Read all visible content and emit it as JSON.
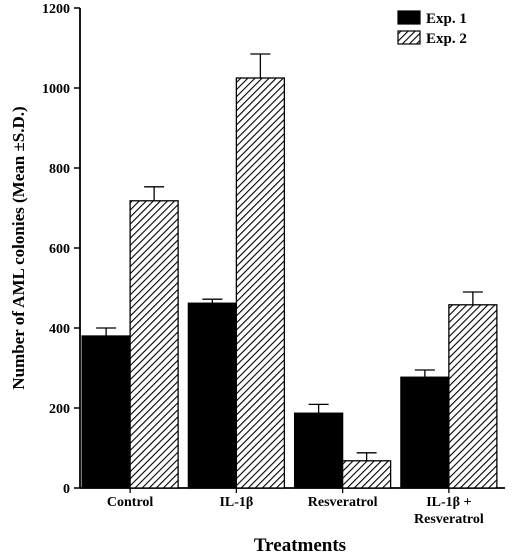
{
  "chart_data": {
    "type": "bar",
    "title": "",
    "xlabel": "Treatments",
    "ylabel": "Number of AML colonies (Mean ±S.D.)",
    "ylim": [
      0,
      1200
    ],
    "yticks": [
      0,
      200,
      400,
      600,
      800,
      1000,
      1200
    ],
    "categories": [
      [
        "Control"
      ],
      [
        "IL-1β"
      ],
      [
        "Resveratrol"
      ],
      [
        "IL-1β +",
        "Resveratrol"
      ]
    ],
    "series": [
      {
        "name": "Exp. 1",
        "values": [
          380,
          462,
          187,
          277
        ],
        "errors": [
          20,
          10,
          22,
          18
        ],
        "fill": "solid",
        "color": "#000000"
      },
      {
        "name": "Exp. 2",
        "values": [
          718,
          1025,
          68,
          458
        ],
        "errors": [
          35,
          60,
          20,
          32
        ],
        "fill": "hatched",
        "color": "#000000"
      }
    ],
    "legend_position": "top-right",
    "grid": false
  }
}
